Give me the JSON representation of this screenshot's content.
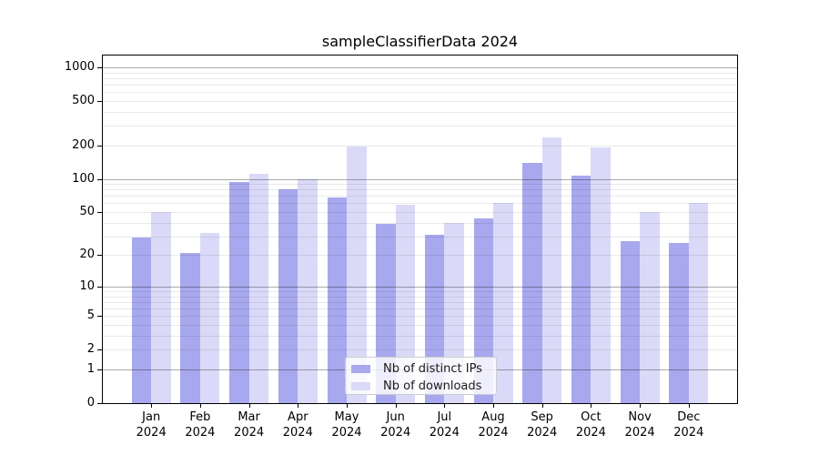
{
  "chart_data": {
    "type": "bar",
    "title": "sampleClassifierData 2024",
    "categories": [
      "Jan 2024",
      "Feb 2024",
      "Mar 2024",
      "Apr 2024",
      "May 2024",
      "Jun 2024",
      "Jul 2024",
      "Aug 2024",
      "Sep 2024",
      "Oct 2024",
      "Nov 2024",
      "Dec 2024"
    ],
    "series": [
      {
        "name": "Nb of distinct IPs",
        "slug": "distinct-ips",
        "color": "#a8a8ee",
        "values": [
          29,
          21,
          94,
          80,
          68,
          39,
          31,
          44,
          140,
          106,
          27,
          26
        ]
      },
      {
        "name": "Nb of downloads",
        "slug": "downloads",
        "color": "#dadaf8",
        "values": [
          50,
          32,
          112,
          100,
          195,
          58,
          40,
          60,
          235,
          190,
          50,
          60
        ]
      }
    ],
    "yticks": [
      0,
      1,
      2,
      5,
      10,
      20,
      50,
      100,
      200,
      500,
      1000
    ],
    "ylim": [
      0,
      1100
    ],
    "yscale": "log10(value+1)",
    "xlabel": "",
    "ylabel": "",
    "grid": "major dark + minor light horizontal lines, drawn over bars",
    "legend_position": "lower center"
  }
}
